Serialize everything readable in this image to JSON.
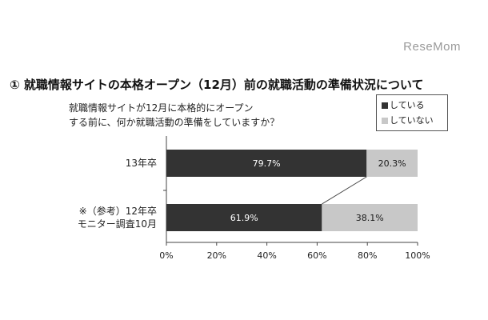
{
  "watermark": "ReseMom",
  "heading": "① 就職情報サイトの本格オープン（12月）前の就職活動の準備状況について",
  "question": {
    "line1": "就職情報サイトが12月に本格的にオープン",
    "line2": "する前に、何か就職活動の準備をしていますか？"
  },
  "chart_data": {
    "type": "bar",
    "orientation": "horizontal",
    "stacked": true,
    "categories": [
      [
        "13年卒"
      ],
      [
        "※（参考）12年卒",
        "モニター調査10月"
      ]
    ],
    "series": [
      {
        "name": "している",
        "values": [
          79.7,
          61.9
        ],
        "labels": [
          "79.7%",
          "61.9%"
        ],
        "color": "#333333",
        "label_color": "#ffffff"
      },
      {
        "name": "していない",
        "values": [
          20.3,
          38.1
        ],
        "labels": [
          "20.3%",
          "38.1%"
        ],
        "color": "#c8c8c8",
        "label_color": "#1a1a1a"
      }
    ],
    "x_ticks": [
      "0%",
      "20%",
      "40%",
      "60%",
      "80%",
      "100%"
    ],
    "xlim": [
      0,
      100
    ],
    "connector_line": true,
    "legend_position": "top-right",
    "grid": false
  },
  "legend": {
    "items": [
      {
        "label": "している",
        "color": "#333333"
      },
      {
        "label": "していない",
        "color": "#c8c8c8"
      }
    ]
  }
}
